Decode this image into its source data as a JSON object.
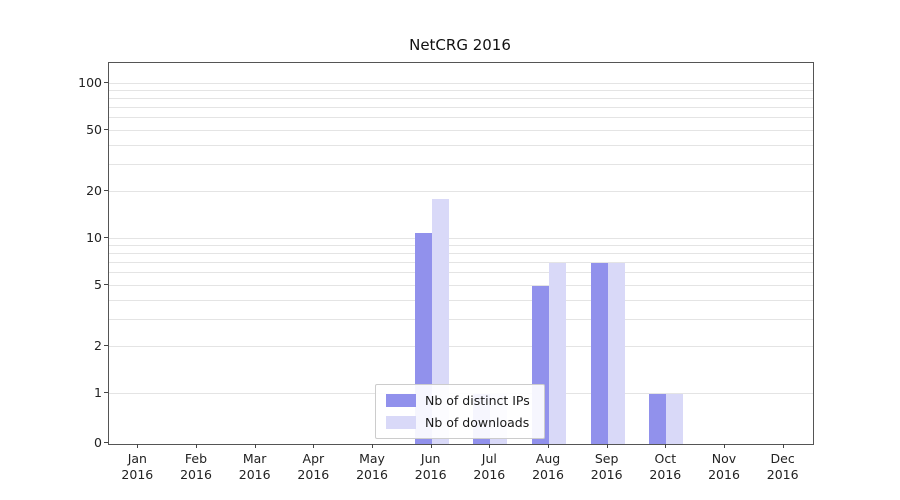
{
  "title": "NetCRG 2016",
  "chart_data": {
    "type": "bar",
    "title": "NetCRG 2016",
    "categories": [
      "Jan 2016",
      "Feb 2016",
      "Mar 2016",
      "Apr 2016",
      "May 2016",
      "Jun 2016",
      "Jul 2016",
      "Aug 2016",
      "Sep 2016",
      "Oct 2016",
      "Nov 2016",
      "Dec 2016"
    ],
    "series": [
      {
        "name": "Nb of distinct IPs",
        "color": "#9191ec",
        "values": [
          0,
          0,
          0,
          0,
          0,
          11,
          1,
          5,
          7,
          1,
          0,
          0
        ]
      },
      {
        "name": "Nb of downloads",
        "color": "#d9d9f8",
        "values": [
          0,
          0,
          0,
          0,
          0,
          18,
          1,
          7,
          7,
          1,
          0,
          0
        ]
      }
    ],
    "yscale": "log-with-zero-baseline",
    "yticks": [
      0,
      1,
      2,
      5,
      10,
      20,
      50,
      100
    ],
    "ylim": [
      0,
      100
    ],
    "grid": true,
    "legend_position": "lower center"
  }
}
